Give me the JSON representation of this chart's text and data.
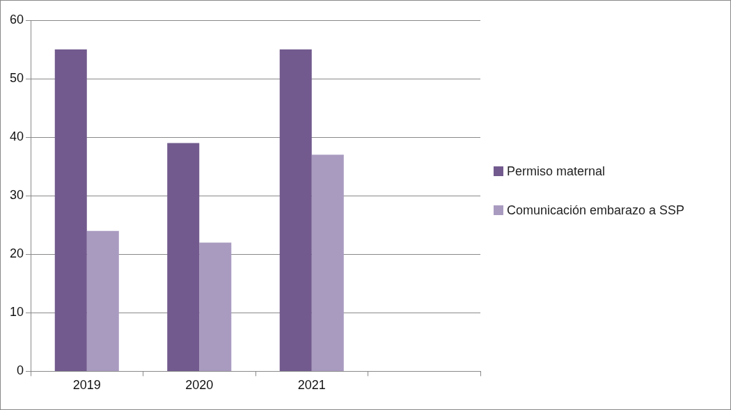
{
  "chart_data": {
    "type": "bar",
    "categories": [
      "2019",
      "2020",
      "2021",
      null
    ],
    "series": [
      {
        "name": "Permiso maternal",
        "color": "#725a8e",
        "values": [
          55,
          39,
          55,
          null
        ]
      },
      {
        "name": "Comunicación embarazo a SSP",
        "color": "#a99bc0",
        "values": [
          24,
          22,
          37,
          null
        ]
      }
    ],
    "ylim": [
      0,
      60
    ],
    "yticks": [
      0,
      10,
      20,
      30,
      40,
      50,
      60
    ],
    "grid": "y",
    "legend": "right"
  }
}
